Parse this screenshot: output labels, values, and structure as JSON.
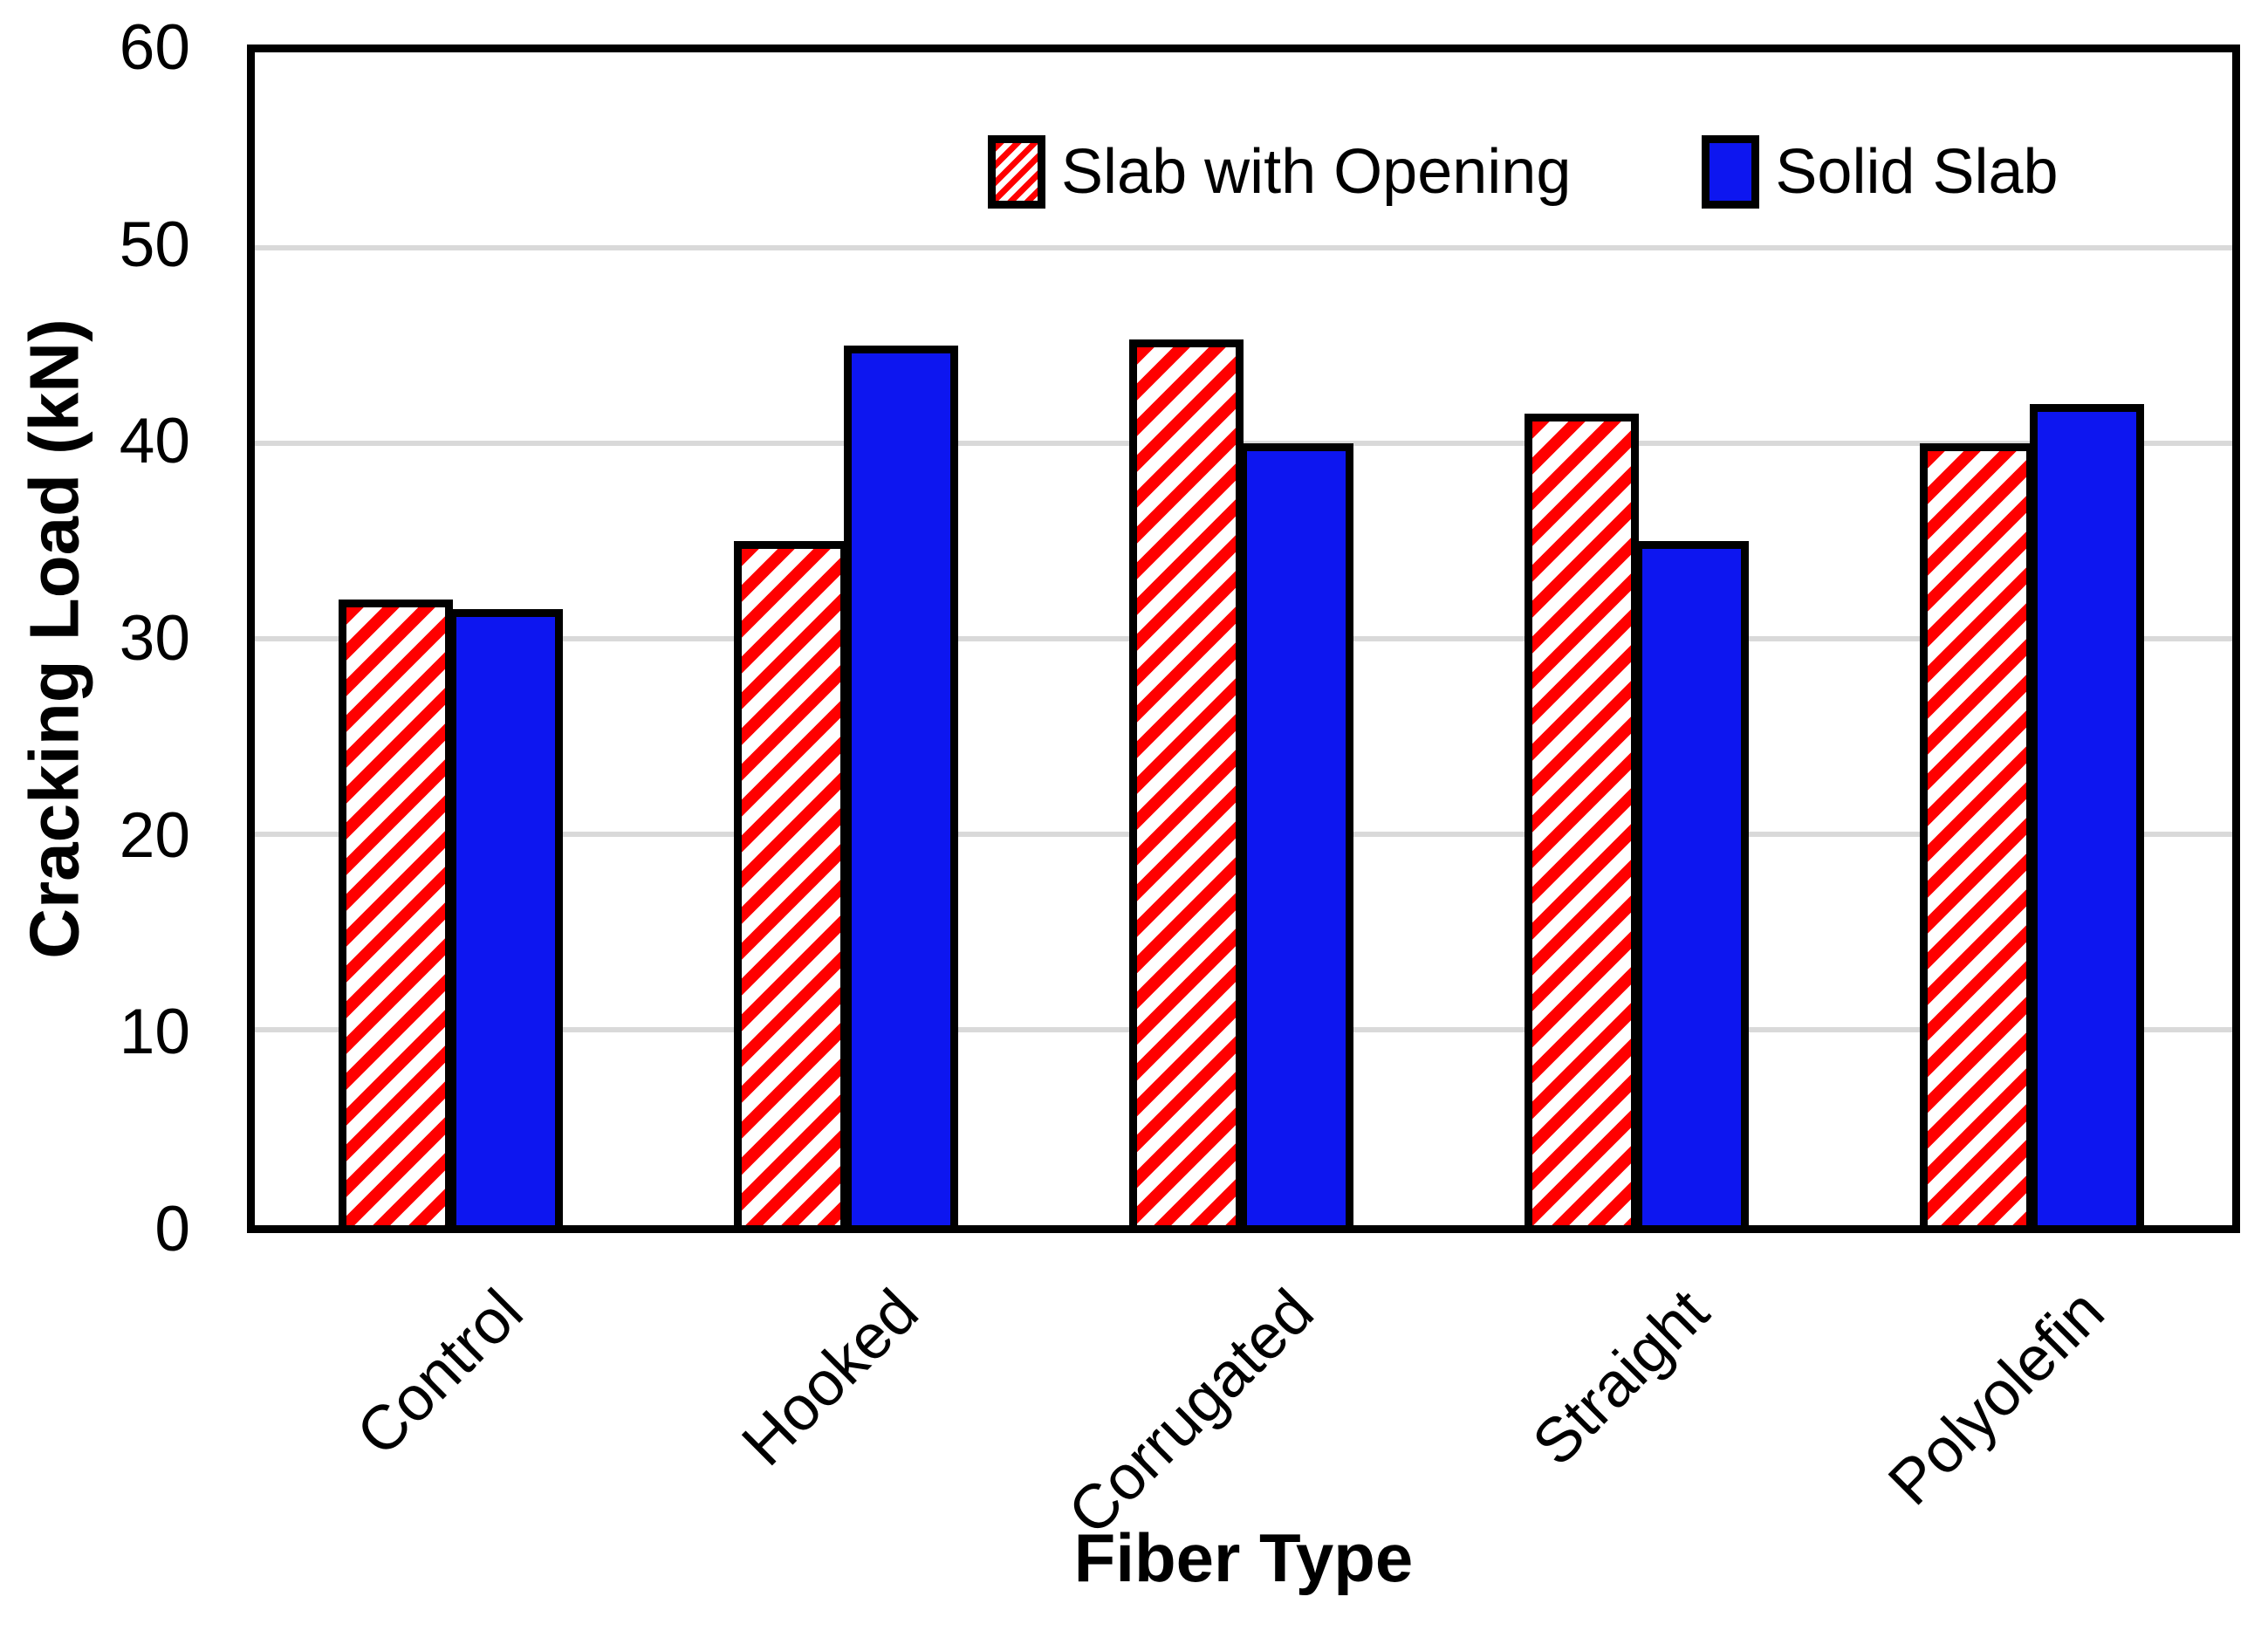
{
  "chart_data": {
    "type": "bar",
    "title": "",
    "xlabel": "Fiber Type",
    "ylabel": "Cracking Load  (kN)",
    "categories": [
      "Control",
      "Hooked",
      "Corrugated",
      "Straight",
      "Polyolefin"
    ],
    "series": [
      {
        "name": "Slab with Opening",
        "style": "hatched-red",
        "values": [
          32,
          35,
          45.3,
          41.5,
          40
        ]
      },
      {
        "name": "Solid Slab",
        "style": "solid-blue",
        "values": [
          31.5,
          45,
          40,
          35,
          42
        ]
      }
    ],
    "ylim": [
      0,
      60
    ],
    "yticks": [
      0,
      10,
      20,
      30,
      40,
      50,
      60
    ],
    "grid": true,
    "legend_position": "top-center",
    "colors": {
      "hatch_red": "#FF0000",
      "solid_blue": "#0D16F0",
      "gridline": "#D9D9D9",
      "axis": "#000000",
      "background": "#FFFFFF"
    }
  }
}
